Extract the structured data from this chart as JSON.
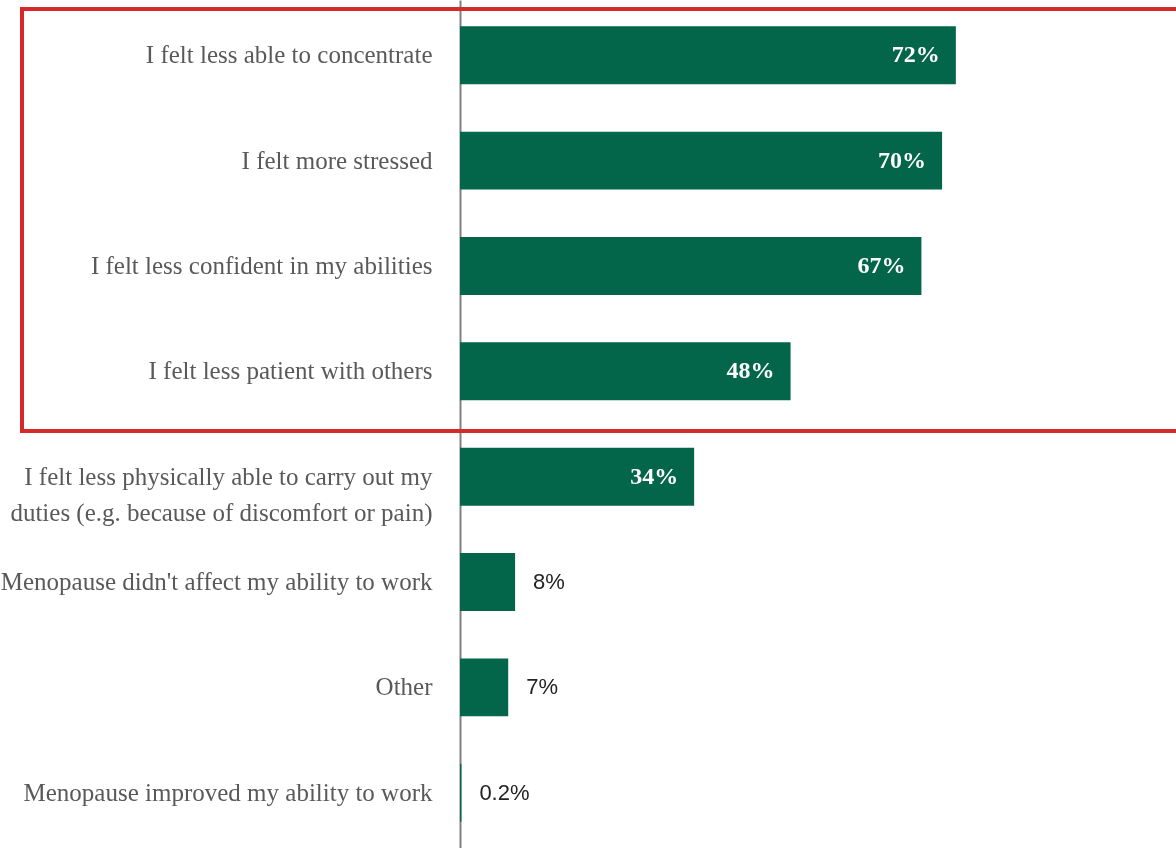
{
  "chart_data": {
    "type": "bar",
    "orientation": "horizontal",
    "categories": [
      "I felt less able to concentrate",
      "I felt more stressed",
      "I felt less confident in my abilities",
      "I felt less patient with others",
      "I felt less physically able to carry out my duties (e.g. because of discomfort or pain)",
      "Menopause didn't affect my ability to work",
      "Other",
      "Menopause improved my ability to work"
    ],
    "values": [
      72,
      70,
      67,
      48,
      34,
      8,
      7,
      0.2
    ],
    "value_labels": [
      "72%",
      "70%",
      "67%",
      "48%",
      "34%",
      "8%",
      "7%",
      "0.2%"
    ],
    "color": "#03664a"
  }
}
